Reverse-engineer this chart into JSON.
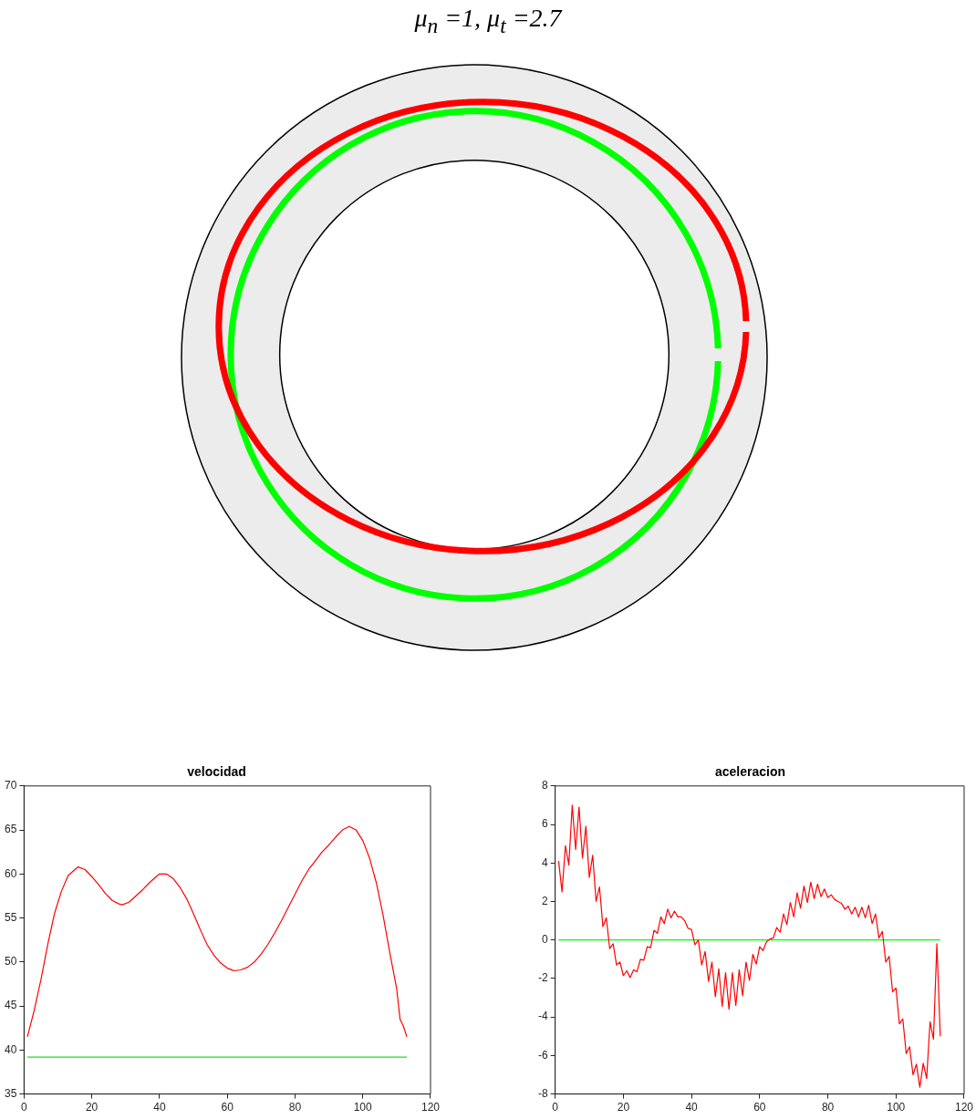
{
  "chart_data": [
    {
      "type": "other",
      "title": "μ$_{n}$ =1, μ$_{t}$ =2.7"
    },
    {
      "type": "line",
      "title": "velocidad",
      "xlim": [
        0,
        120
      ],
      "xticks": [
        0,
        20,
        40,
        60,
        80,
        100,
        120
      ],
      "ylim": [
        35,
        70
      ],
      "yticks": [
        35,
        40,
        45,
        50,
        55,
        60,
        65,
        70
      ],
      "grid": false,
      "legend": false,
      "marker": "none",
      "line_style": "solid",
      "series": [
        {
          "color": "#ff0000",
          "x": [
            1,
            3,
            5,
            7,
            9,
            11,
            13,
            15,
            16,
            18,
            20,
            22,
            24,
            26,
            28,
            29,
            31,
            33,
            35,
            37,
            39,
            40,
            42,
            44,
            46,
            48,
            50,
            52,
            54,
            56,
            58,
            60,
            62,
            64,
            66,
            68,
            70,
            72,
            74,
            76,
            78,
            80,
            82,
            84,
            86,
            88,
            90,
            92,
            94,
            96,
            98,
            100,
            102,
            104,
            106,
            108,
            110,
            111,
            112,
            113
          ],
          "values": [
            41.5,
            44.5,
            48,
            52,
            55.5,
            58,
            59.8,
            60.5,
            60.8,
            60.5,
            59.7,
            58.8,
            57.8,
            57,
            56.6,
            56.5,
            56.8,
            57.5,
            58.2,
            59,
            59.7,
            60,
            60,
            59.5,
            58.5,
            57.2,
            55.5,
            53.7,
            52,
            50.8,
            49.9,
            49.3,
            49,
            49.1,
            49.4,
            50,
            50.9,
            52,
            53.3,
            54.7,
            56.2,
            57.7,
            59.2,
            60.5,
            61.5,
            62.5,
            63.3,
            64.2,
            65,
            65.4,
            65,
            63.8,
            61.8,
            59,
            55.3,
            51,
            47,
            43.5,
            42.7,
            41.5
          ]
        },
        {
          "color": "#22dd22",
          "x": [
            1,
            113
          ],
          "values": [
            39.2,
            39.2
          ]
        }
      ]
    },
    {
      "type": "line",
      "title": "aceleracion",
      "xlim": [
        0,
        120
      ],
      "xticks": [
        0,
        20,
        40,
        60,
        80,
        100,
        120
      ],
      "ylim": [
        -8,
        8
      ],
      "yticks": [
        -8,
        -6,
        -4,
        -2,
        0,
        2,
        4,
        6,
        8
      ],
      "grid": false,
      "legend": false,
      "marker": "none",
      "line_style": "solid",
      "series": [
        {
          "color": "#ff0000",
          "x": [
            1,
            2,
            3,
            4,
            5,
            6,
            7,
            8,
            9,
            10,
            11,
            12,
            13,
            14,
            15,
            16,
            17,
            18,
            19,
            20,
            21,
            22,
            23,
            24,
            25,
            26,
            27,
            28,
            29,
            30,
            31,
            32,
            33,
            34,
            35,
            36,
            37,
            38,
            39,
            40,
            41,
            42,
            43,
            44,
            45,
            46,
            47,
            48,
            49,
            50,
            51,
            52,
            53,
            54,
            55,
            56,
            57,
            58,
            59,
            60,
            61,
            62,
            63,
            64,
            65,
            66,
            67,
            68,
            69,
            70,
            71,
            72,
            73,
            74,
            75,
            76,
            77,
            78,
            79,
            80,
            81,
            82,
            83,
            84,
            85,
            86,
            87,
            88,
            89,
            90,
            91,
            92,
            93,
            94,
            95,
            96,
            97,
            98,
            99,
            100,
            101,
            102,
            103,
            104,
            105,
            106,
            107,
            108,
            109,
            110,
            111,
            112,
            113
          ],
          "values": [
            4.1,
            2.5,
            4.9,
            3.9,
            7.0,
            4.7,
            6.9,
            4.25,
            5.9,
            3.25,
            4.4,
            2.0,
            2.75,
            0.7,
            1.15,
            -0.45,
            -0.2,
            -1.3,
            -1.15,
            -1.85,
            -1.6,
            -1.95,
            -1.55,
            -1.65,
            -1.0,
            -1.05,
            -0.35,
            -0.4,
            0.5,
            0.35,
            1.2,
            0.85,
            1.6,
            1.15,
            1.5,
            1.2,
            1.2,
            1.0,
            0.6,
            0.55,
            -0.25,
            0.0,
            -1.3,
            -0.6,
            -2.15,
            -1.15,
            -2.95,
            -1.5,
            -3.45,
            -1.7,
            -3.6,
            -1.7,
            -3.4,
            -1.55,
            -2.9,
            -1.15,
            -2.1,
            -0.75,
            -1.25,
            -0.35,
            -0.55,
            -0.1,
            0.05,
            0.1,
            0.65,
            0.4,
            1.35,
            0.8,
            1.95,
            1.2,
            2.45,
            1.65,
            2.8,
            1.95,
            3.0,
            2.15,
            2.9,
            2.25,
            2.65,
            2.2,
            2.35,
            2.1,
            2.0,
            1.9,
            1.6,
            1.75,
            1.35,
            1.7,
            1.2,
            1.7,
            1.15,
            1.8,
            0.85,
            1.35,
            0.1,
            0.45,
            -1.15,
            -0.85,
            -2.7,
            -2.5,
            -4.35,
            -4.1,
            -5.9,
            -5.55,
            -7.0,
            -6.45,
            -7.65,
            -6.4,
            -7.2,
            -4.25,
            -5.15,
            -0.2,
            -5.0
          ]
        },
        {
          "color": "#00ff00",
          "x": [
            1,
            113
          ],
          "values": [
            0,
            0
          ]
        }
      ]
    }
  ]
}
